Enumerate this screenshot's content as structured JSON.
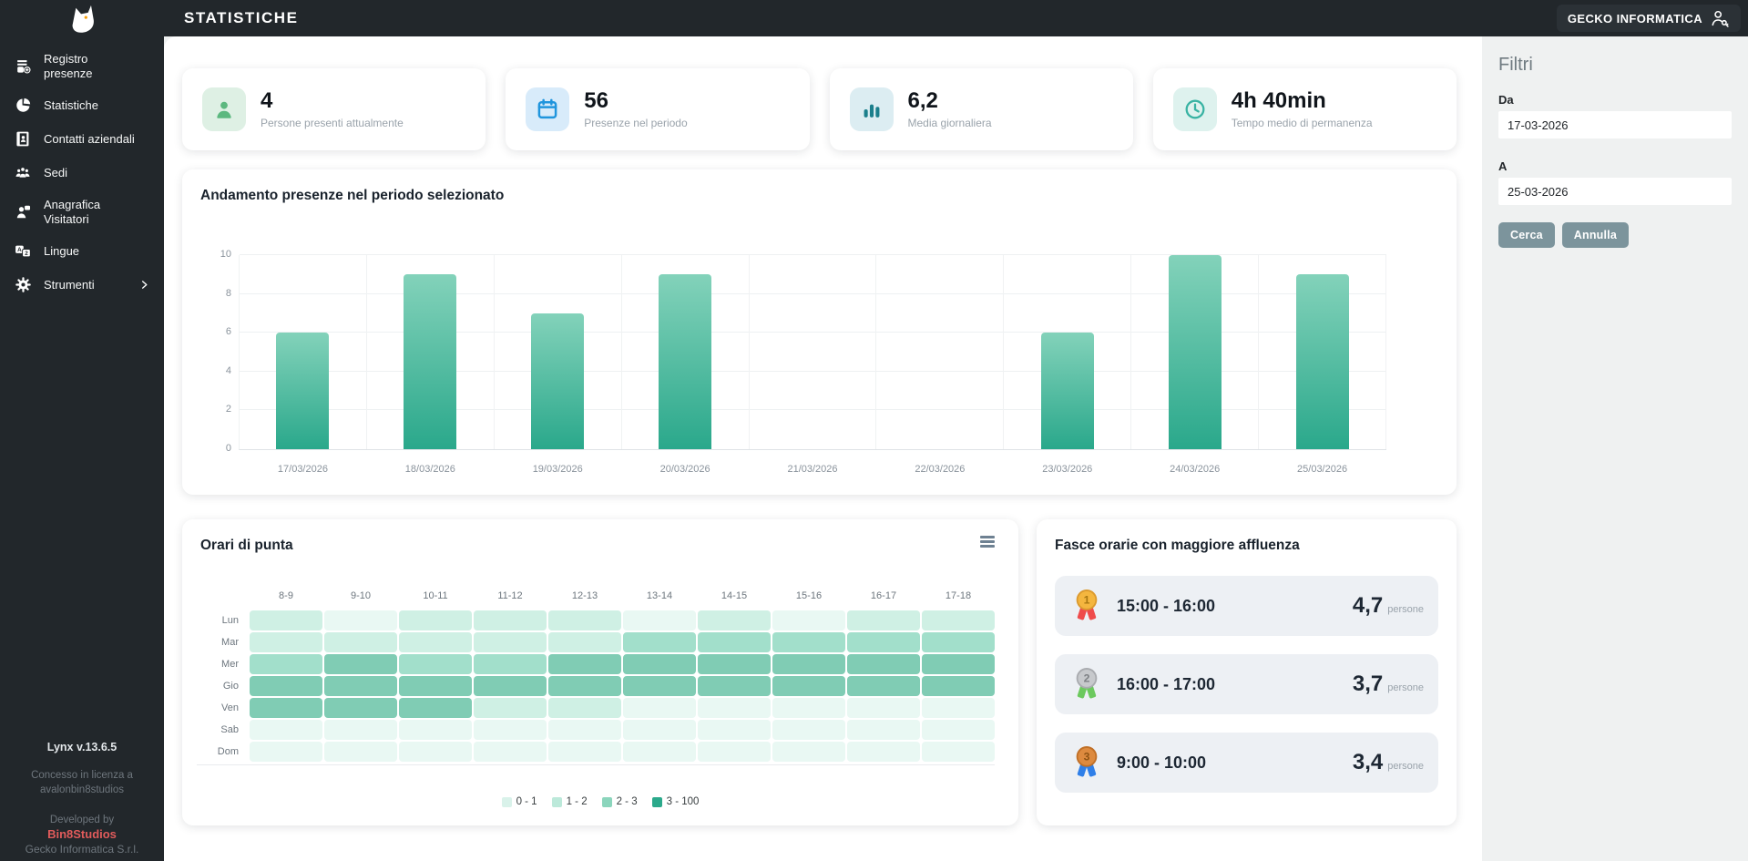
{
  "header": {
    "title": "STATISTICHE",
    "account_label": "GECKO INFORMATICA"
  },
  "sidebar": {
    "items": [
      {
        "label": "Registro presenze",
        "icon": "register"
      },
      {
        "label": "Statistiche",
        "icon": "pie-chart"
      },
      {
        "label": "Contatti aziendali",
        "icon": "contacts"
      },
      {
        "label": "Sedi",
        "icon": "people-group"
      },
      {
        "label": "Anagrafica Visitatori",
        "icon": "person-card"
      },
      {
        "label": "Lingue",
        "icon": "translate"
      },
      {
        "label": "Strumenti",
        "icon": "gear",
        "has_submenu": true
      }
    ],
    "footer": {
      "version": "Lynx v.13.6.5",
      "license_line1": "Concesso in licenza a",
      "license_line2": "avalonbin8studios",
      "developed_by": "Developed by",
      "developer": "Bin8Studios",
      "developer_color": "#e15b5b",
      "company": "Gecko Informatica S.r.l."
    }
  },
  "stat_cards": [
    {
      "value": "4",
      "label": "Persone presenti attualmente",
      "icon": "person",
      "icon_color": "#5cb87f",
      "icon_bg": "#def0e4"
    },
    {
      "value": "56",
      "label": "Presenze nel periodo",
      "icon": "calendar",
      "icon_color": "#2095dd",
      "icon_bg": "#d8ebfa"
    },
    {
      "value": "6,2",
      "label": "Media giornaliera",
      "icon": "bar-columns",
      "icon_color": "#1b7f8c",
      "icon_bg": "#dcedf2"
    },
    {
      "value": "4h 40min",
      "label": "Tempo medio di permanenza",
      "icon": "clock",
      "icon_color": "#39b3a3",
      "icon_bg": "#def2ee"
    }
  ],
  "chart_data": [
    {
      "type": "bar",
      "title": "Andamento presenze nel periodo selezionato",
      "categories": [
        "17/03/2026",
        "18/03/2026",
        "19/03/2026",
        "20/03/2026",
        "21/03/2026",
        "22/03/2026",
        "23/03/2026",
        "24/03/2026",
        "25/03/2026"
      ],
      "values": [
        6,
        9,
        7,
        9,
        0,
        0,
        6,
        10,
        9
      ],
      "xlabel": "",
      "ylabel": "",
      "ylim": [
        0,
        10
      ],
      "yticks": [
        0,
        2,
        4,
        6,
        8,
        10
      ],
      "grid": true,
      "legend_position": "none",
      "bar_gradient_top": "#83d2ba",
      "bar_gradient_bottom": "#2aa88b"
    },
    {
      "type": "heatmap",
      "title": "Orari di punta",
      "x_labels": [
        "8-9",
        "9-10",
        "10-11",
        "11-12",
        "12-13",
        "13-14",
        "14-15",
        "15-16",
        "16-17",
        "17-18"
      ],
      "y_labels": [
        "Lun",
        "Mar",
        "Mer",
        "Gio",
        "Ven",
        "Sab",
        "Dom"
      ],
      "levels": [
        [
          1,
          0,
          1,
          1,
          1,
          0,
          1,
          0,
          1,
          1
        ],
        [
          1,
          1,
          1,
          1,
          1,
          2,
          2,
          2,
          2,
          2
        ],
        [
          2,
          3,
          2,
          2,
          3,
          3,
          3,
          3,
          3,
          3
        ],
        [
          3,
          3,
          3,
          3,
          3,
          3,
          3,
          3,
          3,
          3
        ],
        [
          3,
          3,
          3,
          1,
          1,
          0,
          0,
          0,
          0,
          0
        ],
        [
          0,
          0,
          0,
          0,
          0,
          0,
          0,
          0,
          0,
          0
        ],
        [
          0,
          0,
          0,
          0,
          0,
          0,
          0,
          0,
          0,
          0
        ]
      ],
      "level_colors": [
        "#e9f8f3",
        "#cff0e4",
        "#a2dfcb",
        "#80ccb4"
      ],
      "legend_position": "bottom",
      "legend": [
        {
          "label": "0 - 1",
          "color": "#d9f2ea"
        },
        {
          "label": "1 - 2",
          "color": "#bce9da"
        },
        {
          "label": "2 - 3",
          "color": "#8bd5bc"
        },
        {
          "label": "3 - 100",
          "color": "#2ba98b"
        }
      ]
    }
  ],
  "top_slots": {
    "title": "Fasce orarie con maggiore affluenza",
    "items": [
      {
        "rank": "1",
        "medal": "gold",
        "time": "15:00 - 16:00",
        "value": "4,7",
        "unit": "persone"
      },
      {
        "rank": "2",
        "medal": "silver",
        "time": "16:00 - 17:00",
        "value": "3,7",
        "unit": "persone"
      },
      {
        "rank": "3",
        "medal": "bronze",
        "time": "9:00 - 10:00",
        "value": "3,4",
        "unit": "persone"
      }
    ]
  },
  "filters": {
    "title": "Filtri",
    "from_label": "Da",
    "from_value": "17-03-2026",
    "to_label": "A",
    "to_value": "25-03-2026",
    "search_label": "Cerca",
    "cancel_label": "Annulla"
  }
}
